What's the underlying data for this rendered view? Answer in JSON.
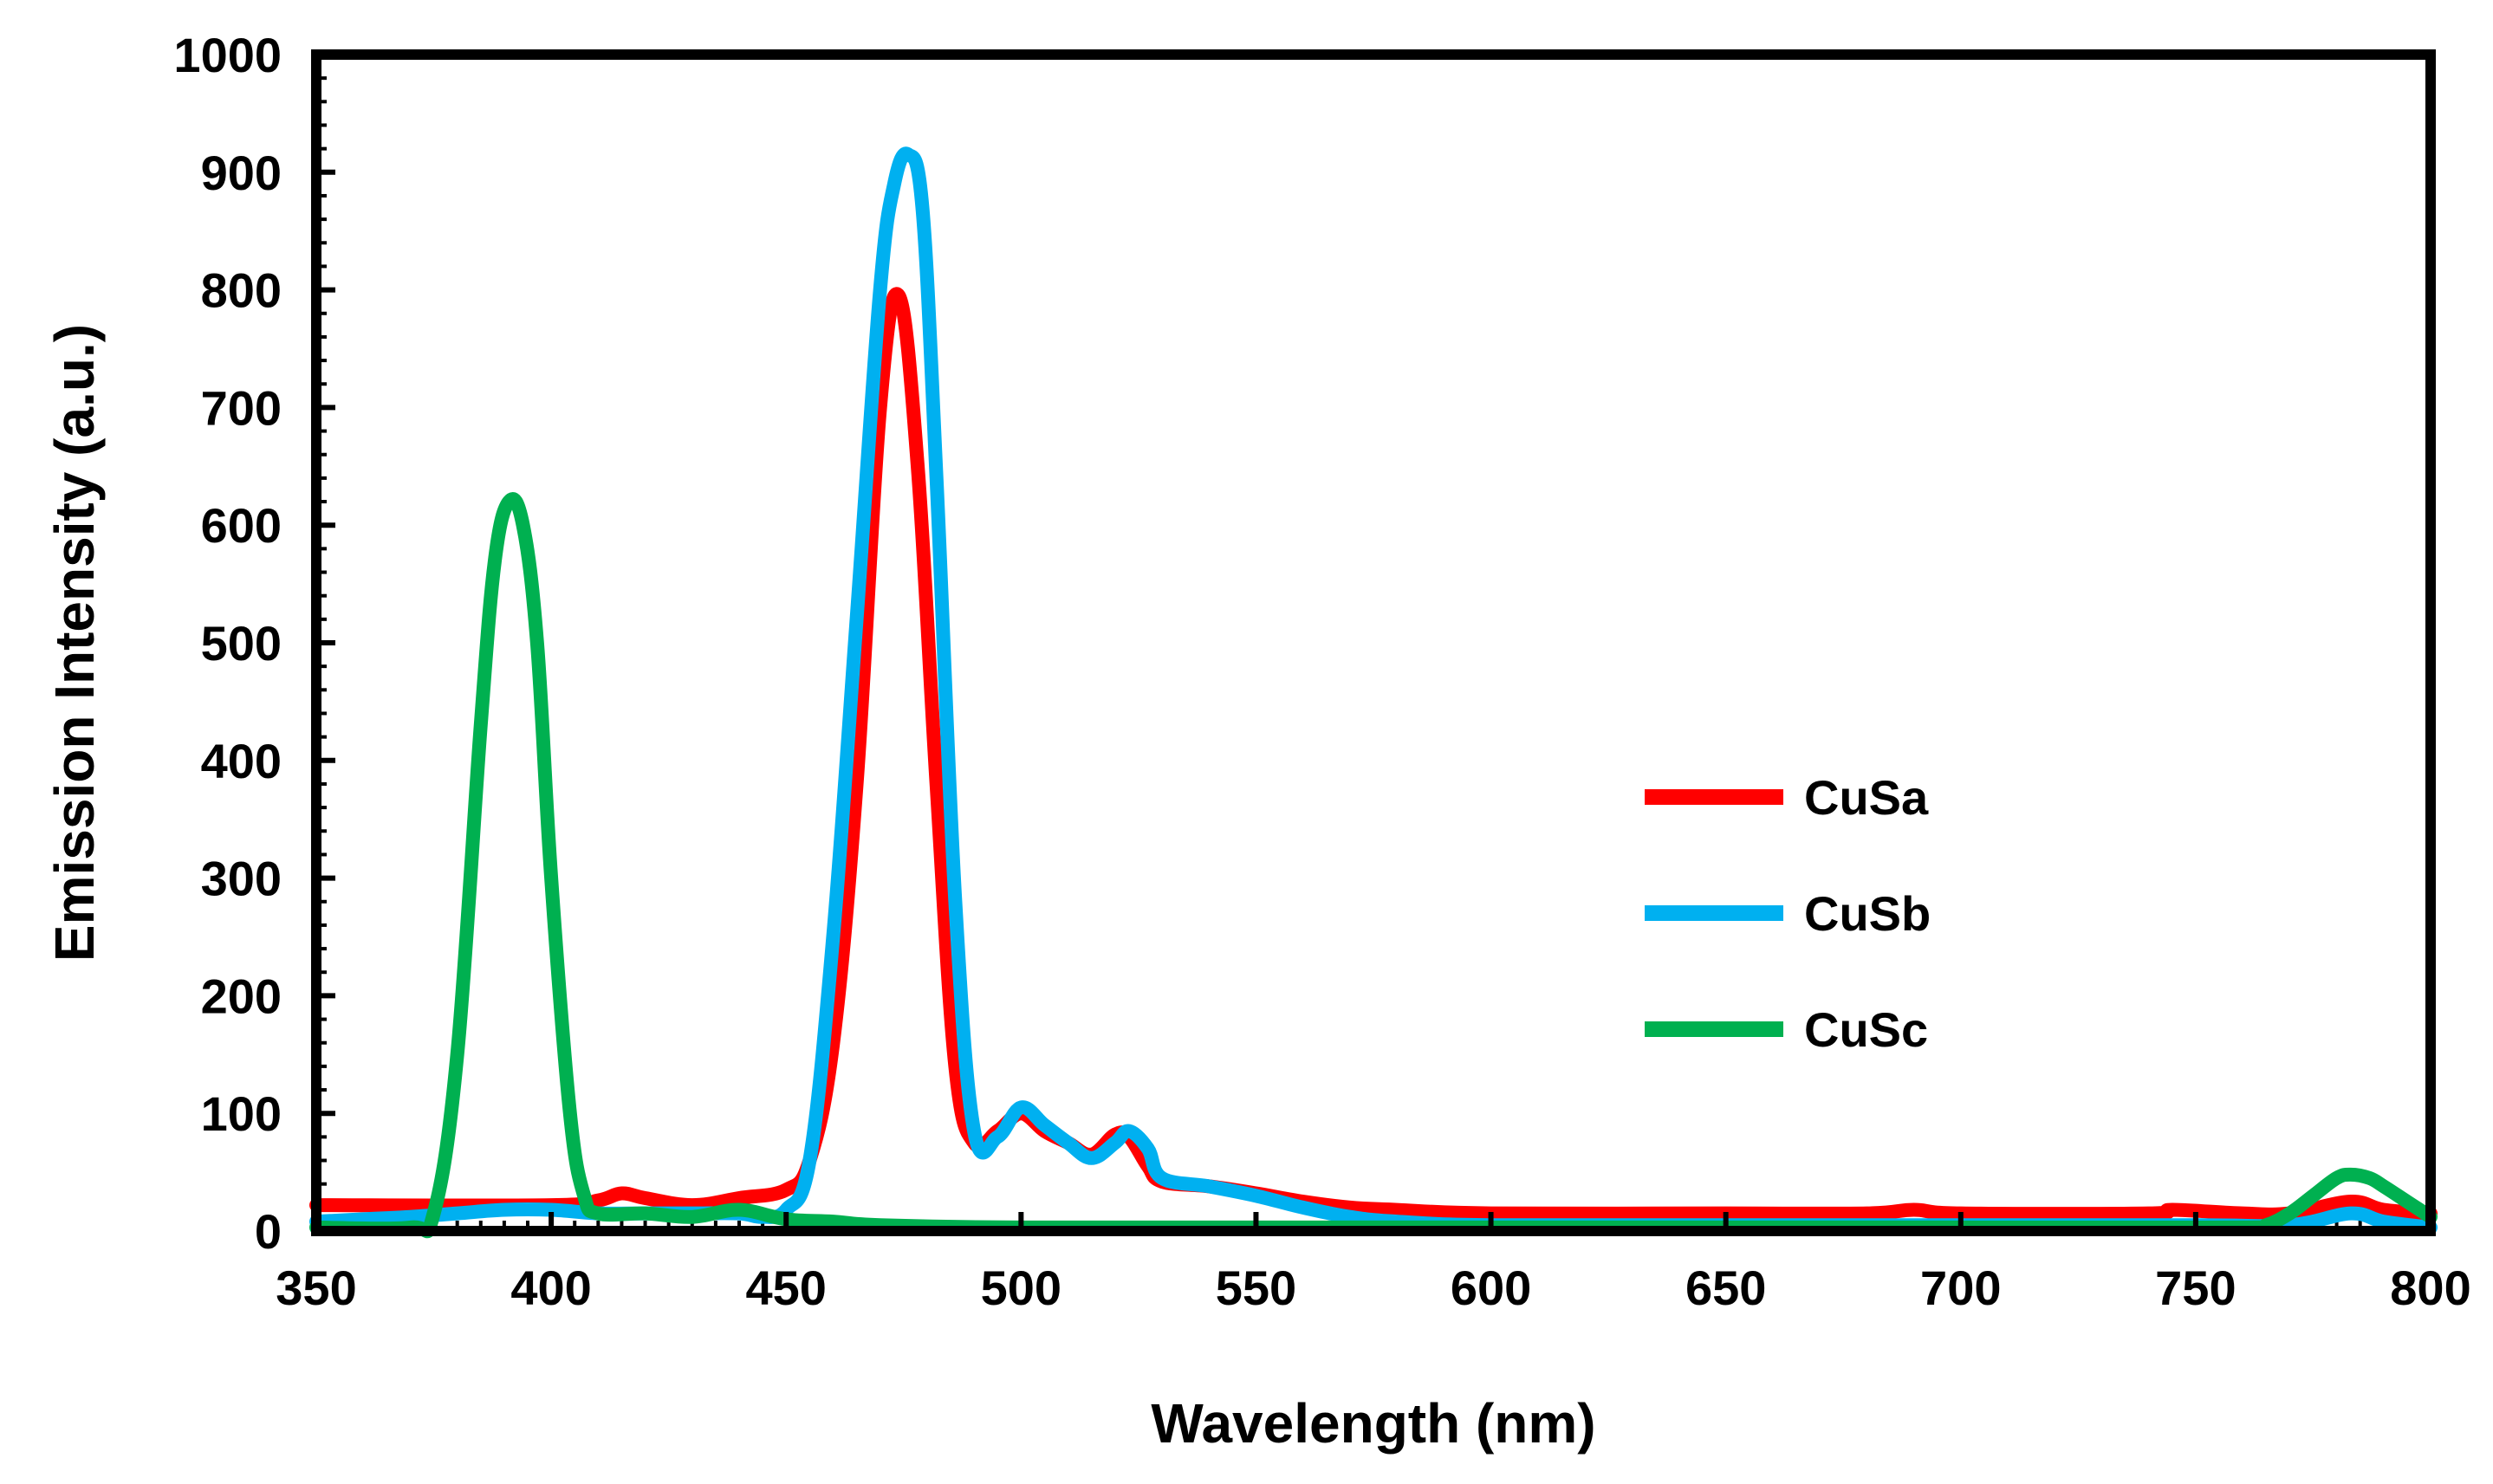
{
  "chart_data": {
    "type": "line",
    "title": "",
    "xlabel": "Wavelength (nm)",
    "ylabel": "Emission Intensity (a.u.)",
    "xlim": [
      350,
      800
    ],
    "ylim": [
      0,
      1000
    ],
    "xticks": [
      350,
      400,
      450,
      500,
      550,
      600,
      650,
      700,
      750,
      800
    ],
    "yticks": [
      0,
      100,
      200,
      300,
      400,
      500,
      600,
      700,
      800,
      900,
      1000
    ],
    "grid": false,
    "legend_position": "center-right",
    "series": [
      {
        "name": "CuSa",
        "color": "#ff0000",
        "x": [
          350,
          400,
          410,
          415,
          420,
          430,
          440,
          450,
          455,
          460,
          465,
          470,
          474,
          478,
          482,
          486,
          490,
          495,
          500,
          505,
          510,
          515,
          520,
          523,
          527,
          530,
          540,
          550,
          560,
          570,
          580,
          600,
          650,
          680,
          690,
          700,
          740,
          745,
          760,
          770,
          783,
          790,
          800
        ],
        "values": [
          22,
          22,
          26,
          32,
          28,
          22,
          28,
          35,
          60,
          160,
          380,
          700,
          795,
          650,
          380,
          140,
          75,
          85,
          100,
          85,
          75,
          65,
          82,
          80,
          55,
          42,
          38,
          32,
          25,
          20,
          18,
          15,
          15,
          15,
          18,
          15,
          15,
          18,
          15,
          15,
          25,
          18,
          15
        ]
      },
      {
        "name": "CuSb",
        "color": "#00b0f0",
        "x": [
          350,
          360,
          370,
          380,
          390,
          400,
          410,
          420,
          430,
          440,
          445,
          450,
          455,
          460,
          465,
          470,
          473,
          476,
          479,
          482,
          486,
          490,
          495,
          500,
          505,
          510,
          515,
          520,
          523,
          527,
          530,
          540,
          550,
          560,
          570,
          580,
          600,
          650,
          700,
          750,
          770,
          783,
          790,
          800
        ],
        "values": [
          8,
          10,
          12,
          15,
          18,
          18,
          15,
          15,
          15,
          15,
          12,
          18,
          60,
          250,
          520,
          800,
          890,
          915,
          870,
          640,
          280,
          85,
          80,
          105,
          90,
          75,
          62,
          75,
          85,
          70,
          45,
          38,
          30,
          20,
          12,
          8,
          5,
          5,
          5,
          5,
          5,
          15,
          8,
          3
        ]
      },
      {
        "name": "CuSc",
        "color": "#00b050",
        "x": [
          350,
          370,
          375,
          380,
          385,
          388,
          391,
          394,
          397,
          400,
          404,
          407,
          410,
          420,
          430,
          440,
          450,
          460,
          470,
          500,
          550,
          600,
          650,
          700,
          760,
          765,
          770,
          775,
          780,
          783,
          787,
          790,
          795,
          800
        ],
        "values": [
          3,
          3,
          15,
          150,
          430,
          570,
          620,
          600,
          500,
          300,
          100,
          30,
          15,
          15,
          12,
          18,
          10,
          8,
          5,
          3,
          3,
          3,
          3,
          3,
          3,
          5,
          15,
          30,
          45,
          48,
          45,
          38,
          25,
          12
        ]
      }
    ]
  }
}
